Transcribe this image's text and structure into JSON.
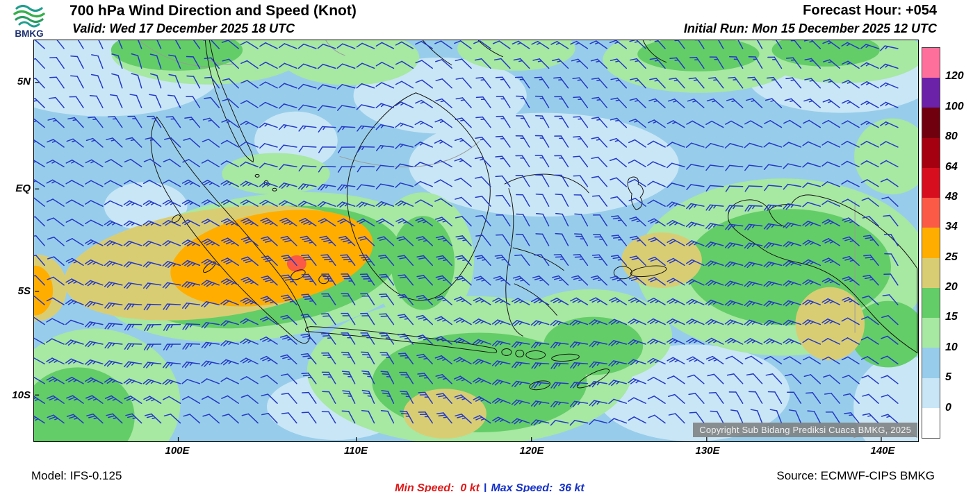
{
  "header": {
    "logo_text": "BMKG",
    "title": "700 hPa Wind Direction and Speed (Knot)",
    "valid_line": "Valid: Wed 17 December 2025 18 UTC",
    "forecast_hour": "Forecast Hour: +054",
    "initial_run": "Initial Run: Mon 15 December 2025 12 UTC"
  },
  "map": {
    "lat_labels": [
      "5N",
      "EQ",
      "5S",
      "10S"
    ],
    "lon_labels": [
      "100E",
      "110E",
      "120E",
      "130E",
      "140E"
    ],
    "copyright": "Copyright Sub Bidang Prediksi Cuaca BMKG, 2025",
    "wind_barb_color": "#2438C8",
    "coastline_color": "#141414",
    "border_color": "#9a9a9a"
  },
  "legend": {
    "labels": [
      "120",
      "100",
      "80",
      "64",
      "48",
      "34",
      "25",
      "20",
      "15",
      "10",
      "5",
      "0"
    ],
    "colors": [
      "#FF6F9C",
      "#6B21A8",
      "#70000D",
      "#A50010",
      "#D60E1E",
      "#FA5A46",
      "#FFAE00",
      "#D9CD74",
      "#63CD67",
      "#A7E8A2",
      "#97CDEA",
      "#C9E6F6",
      "#FFFFFF"
    ]
  },
  "footer": {
    "model": "Model: IFS-0.125",
    "min_speed": "Min Speed:  0 kt",
    "separator": "|",
    "max_speed": "Max Speed:  36 kt",
    "source": "Source: ECMWF-CIPS BMKG",
    "min_color": "#E01818",
    "max_color": "#1430C8"
  }
}
